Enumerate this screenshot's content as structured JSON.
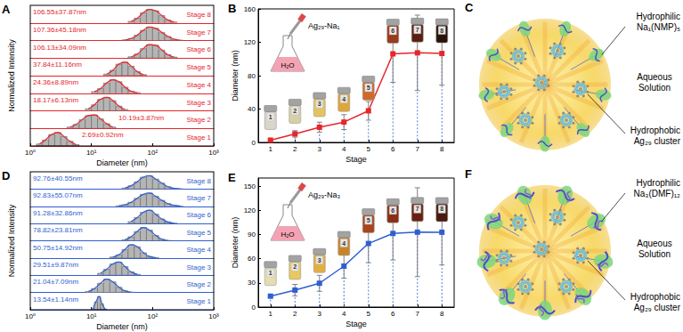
{
  "chart_data": [
    {
      "type": "histogram",
      "title": "A",
      "xlabel": "Diameter (nm)",
      "ylabel": "Normalized Intensity",
      "log": "x",
      "xlim": [
        1,
        1000
      ],
      "xticks": [
        {
          "value": 1,
          "label": "10⁰"
        },
        {
          "value": 10,
          "label": "10¹"
        },
        {
          "value": 100,
          "label": "10²"
        },
        {
          "value": 1000,
          "label": "10³"
        }
      ],
      "ylim": [
        0,
        1.3
      ],
      "yticks": [],
      "tick_labels": "x",
      "color": "#e5262b",
      "series": [
        {
          "name": "Stage 1",
          "annotation": "2.69±0.92nm",
          "bins": [
            1.26,
            1.58,
            2,
            2.51,
            3.16,
            3.98,
            5.01,
            6.31
          ],
          "counts": [
            0.15,
            0.45,
            0.85,
            1,
            0.7,
            0.35,
            0.1
          ]
        },
        {
          "name": "Stage 2",
          "annotation": "10.19±3.87nm",
          "bins": [
            3.98,
            5.01,
            6.31,
            7.94,
            10,
            12.6,
            15.8,
            20,
            25.1
          ],
          "counts": [
            0.1,
            0.3,
            0.65,
            0.95,
            1,
            0.7,
            0.35,
            0.1
          ]
        },
        {
          "name": "Stage 3",
          "annotation": "18.17±6.13nm",
          "bins": [
            7.94,
            10,
            12.6,
            15.8,
            20,
            25.1,
            31.6,
            39.8
          ],
          "counts": [
            0.15,
            0.45,
            0.85,
            1,
            0.75,
            0.35,
            0.1
          ]
        },
        {
          "name": "Stage 4",
          "annotation": "24.36±8.89nm",
          "bins": [
            10,
            12.6,
            15.8,
            20,
            25.1,
            31.6,
            39.8,
            50.1,
            63.1
          ],
          "counts": [
            0.12,
            0.35,
            0.75,
            1,
            0.85,
            0.45,
            0.15,
            0.05
          ]
        },
        {
          "name": "Stage 5",
          "annotation": "37.84±11.16nm",
          "bins": [
            15.8,
            20,
            25.1,
            31.6,
            39.8,
            50.1,
            63.1,
            79.4
          ],
          "counts": [
            0.12,
            0.4,
            0.85,
            1,
            0.7,
            0.3,
            0.08
          ]
        },
        {
          "name": "Stage 6",
          "annotation": "106.13±34.09nm",
          "bins": [
            39.8,
            50.1,
            63.1,
            79.4,
            100,
            126,
            158,
            200,
            251
          ],
          "counts": [
            0.1,
            0.3,
            0.7,
            1,
            0.95,
            0.6,
            0.25,
            0.08
          ]
        },
        {
          "name": "Stage 7",
          "annotation": "107.36±45.18nm",
          "bins": [
            31.6,
            39.8,
            50.1,
            63.1,
            79.4,
            100,
            126,
            158,
            200,
            251,
            316
          ],
          "counts": [
            0.05,
            0.15,
            0.4,
            0.75,
            1,
            0.9,
            0.6,
            0.3,
            0.1,
            0.03
          ]
        },
        {
          "name": "Stage 8",
          "annotation": "106.55±37.87nm",
          "bins": [
            39.8,
            50.1,
            63.1,
            79.4,
            100,
            126,
            158,
            200,
            251
          ],
          "counts": [
            0.12,
            0.35,
            0.75,
            1,
            0.9,
            0.55,
            0.22,
            0.07
          ]
        }
      ]
    },
    {
      "type": "line",
      "title": "B",
      "xlabel": "Stage",
      "ylabel": "Diameter (nm)",
      "color": "#e5262b",
      "marker": "square",
      "xlim": [
        0.5,
        8.5
      ],
      "xticks": [
        1,
        2,
        3,
        4,
        5,
        6,
        7,
        8
      ],
      "ylim": [
        0,
        160
      ],
      "yticks": [
        0,
        40,
        80,
        120,
        160
      ],
      "x": [
        1,
        2,
        3,
        4,
        5,
        6,
        7,
        8
      ],
      "values": [
        2.69,
        10.19,
        18.17,
        24.36,
        37.84,
        106.13,
        107.36,
        106.55
      ],
      "errors": [
        0.92,
        3.87,
        6.13,
        8.89,
        11.16,
        34.09,
        45.18,
        37.87
      ],
      "annotations": [
        "Ag₂₉-Na₁",
        "H₂O"
      ],
      "vials": {
        "labels": [
          "1",
          "2",
          "3",
          "4",
          "5",
          "6",
          "7",
          "8"
        ],
        "colors": [
          "#d9d5c9",
          "#d8cfa6",
          "#e4c35e",
          "#dfa63a",
          "#cf6a2b",
          "#9a3a1a",
          "#5a1f10",
          "#2a1208"
        ]
      }
    },
    {
      "type": "histogram",
      "title": "D",
      "xlabel": "Diameter (nm)",
      "ylabel": "Normalized Intensity",
      "log": "x",
      "xlim": [
        1,
        1000
      ],
      "xticks": [
        {
          "value": 1,
          "label": "10⁰"
        },
        {
          "value": 10,
          "label": "10¹"
        },
        {
          "value": 100,
          "label": "10²"
        },
        {
          "value": 1000,
          "label": "10³"
        }
      ],
      "ylim": [
        0,
        1.3
      ],
      "yticks": [],
      "tick_labels": "x",
      "color": "#2f5fd0",
      "series": [
        {
          "name": "Stage 1",
          "annotation": "13.54±1.14nm",
          "bins": [
            10,
            11.2,
            12.6,
            14.1,
            15.8,
            17.8
          ],
          "counts": [
            0.1,
            0.6,
            1,
            0.45,
            0.05
          ]
        },
        {
          "name": "Stage 2",
          "annotation": "21.04±7.09nm",
          "bins": [
            7.94,
            10,
            12.6,
            15.8,
            20,
            25.1,
            31.6,
            39.8,
            50.1
          ],
          "counts": [
            0.08,
            0.3,
            0.7,
            1,
            0.8,
            0.4,
            0.12,
            0.03
          ]
        },
        {
          "name": "Stage 3",
          "annotation": "29.51±9.87nm",
          "bins": [
            12.6,
            15.8,
            20,
            25.1,
            31.6,
            39.8,
            50.1,
            63.1
          ],
          "counts": [
            0.15,
            0.45,
            0.85,
            1,
            0.65,
            0.25,
            0.07
          ]
        },
        {
          "name": "Stage 4",
          "annotation": "50.75±14.92nm",
          "bins": [
            20,
            25.1,
            31.6,
            39.8,
            50.1,
            63.1,
            79.4,
            100,
            126
          ],
          "counts": [
            0.08,
            0.25,
            0.65,
            1,
            0.85,
            0.4,
            0.12,
            0.03
          ]
        },
        {
          "name": "Stage 5",
          "annotation": "78.82±23.81nm",
          "bins": [
            31.6,
            39.8,
            50.1,
            63.1,
            79.4,
            100,
            126,
            158,
            200
          ],
          "counts": [
            0.08,
            0.3,
            0.7,
            1,
            0.8,
            0.4,
            0.12,
            0.03
          ]
        },
        {
          "name": "Stage 6",
          "annotation": "91.28±32.86nm",
          "bins": [
            39.8,
            50.1,
            63.1,
            79.4,
            100,
            126,
            158,
            200,
            251
          ],
          "counts": [
            0.15,
            0.45,
            0.85,
            1,
            0.7,
            0.35,
            0.12,
            0.03
          ]
        },
        {
          "name": "Stage 7",
          "annotation": "92.83±55.07nm",
          "bins": [
            25.1,
            31.6,
            39.8,
            50.1,
            63.1,
            79.4,
            100,
            126,
            158,
            200,
            251,
            316
          ],
          "counts": [
            0.04,
            0.12,
            0.3,
            0.6,
            0.9,
            1,
            0.75,
            0.45,
            0.2,
            0.07,
            0.02
          ]
        },
        {
          "name": "Stage 8",
          "annotation": "92.76±40.55nm",
          "bins": [
            31.6,
            39.8,
            50.1,
            63.1,
            79.4,
            100,
            126,
            158,
            200,
            251,
            316
          ],
          "counts": [
            0.08,
            0.25,
            0.55,
            0.9,
            1,
            0.75,
            0.45,
            0.18,
            0.06,
            0.02
          ]
        }
      ]
    },
    {
      "type": "line",
      "title": "E",
      "xlabel": "Stage",
      "ylabel": "Diameter (nm)",
      "color": "#2f5fd0",
      "marker": "square",
      "xlim": [
        0.5,
        8.5
      ],
      "xticks": [
        1,
        2,
        3,
        4,
        5,
        6,
        7,
        8
      ],
      "ylim": [
        0,
        160
      ],
      "yticks": [
        0,
        30,
        60,
        90,
        120,
        150
      ],
      "x": [
        1,
        2,
        3,
        4,
        5,
        6,
        7,
        8
      ],
      "values": [
        13.54,
        21.04,
        29.51,
        50.75,
        78.82,
        91.28,
        92.83,
        92.76
      ],
      "errors": [
        1.14,
        7.09,
        9.87,
        14.92,
        23.81,
        32.86,
        55.07,
        40.55
      ],
      "annotations": [
        "Ag₂₉-Na₃",
        "H₂O"
      ],
      "vials": {
        "labels": [
          "1",
          "2",
          "3",
          "4",
          "5",
          "6",
          "7",
          "8"
        ],
        "colors": [
          "#e6ddb0",
          "#e8c860",
          "#e2b040",
          "#c8842a",
          "#a8451c",
          "#8a2e14",
          "#6a2010",
          "#4a180c"
        ]
      }
    }
  ],
  "diagrams": [
    {
      "title": "C",
      "labels": [
        [
          "Hydrophilic",
          "Na₁(NMP)₅"
        ],
        [
          "Aqueous",
          "Solution"
        ],
        [
          "Hydrophobic",
          "Ag₂₉ cluster"
        ]
      ]
    },
    {
      "title": "F",
      "labels": [
        [
          "Hydrophilic",
          "Na₃(DMF)₁₂"
        ],
        [
          "Aqueous",
          "Solution"
        ],
        [
          "Hydrophobic",
          "Ag₂₉ cluster"
        ]
      ]
    }
  ]
}
